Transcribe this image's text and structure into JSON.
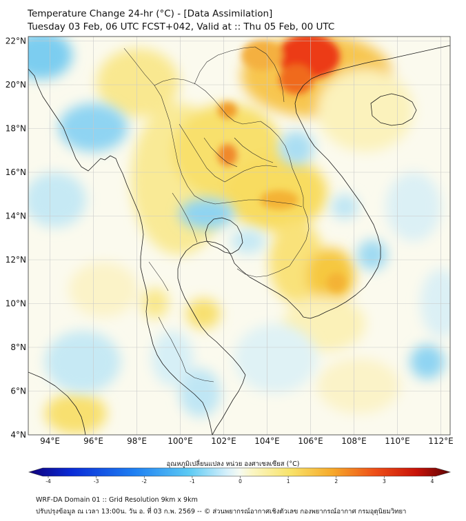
{
  "title_line1": "Temperature Change 24-hr (°C) - [Data Assimilation]",
  "title_line2": "Tuesday 03 Feb, 06 UTC FCST+042, Valid at :: Thu 05 Feb, 00 UTC",
  "lat_labels": [
    "22°N",
    "20°N",
    "18°N",
    "16°N",
    "14°N",
    "12°N",
    "10°N",
    "8°N",
    "6°N",
    "4°N"
  ],
  "lon_labels": [
    "94°E",
    "96°E",
    "98°E",
    "100°E",
    "102°E",
    "104°E",
    "106°E",
    "108°E",
    "110°E",
    "112°E"
  ],
  "colorbar": {
    "title": "อุณหภูมิเปลี่ยนแปลง หน่วย องศาเซลเซียส (°C)",
    "ticks": [
      "-4",
      "-3",
      "-2",
      "-1",
      "0",
      "1",
      "2",
      "3",
      "4"
    ],
    "min": -4,
    "max": 4
  },
  "footer_line1": "WRF-DA Domain 01 :: Grid Resolution 9km x 9km",
  "footer_line2": "ปรับปรุงข้อมูล ณ เวลา 13:00น. วัน อ. ที่ 03 ก.พ. 2569 -- © ส่วนพยากรณ์อากาศเชิงตัวเลข กองพยากรณ์อากาศ กรมอุตุนิยมวิทยา",
  "colors": {
    "warm_strong": "#e81e0e",
    "warm": "#f4a21c",
    "warm_light": "#f8e06c",
    "neutral": "#f4f9ec",
    "cool_light": "#bfe6f4",
    "cool": "#7ccdf0",
    "coast": "#1a1a1a",
    "border": "#222222"
  }
}
